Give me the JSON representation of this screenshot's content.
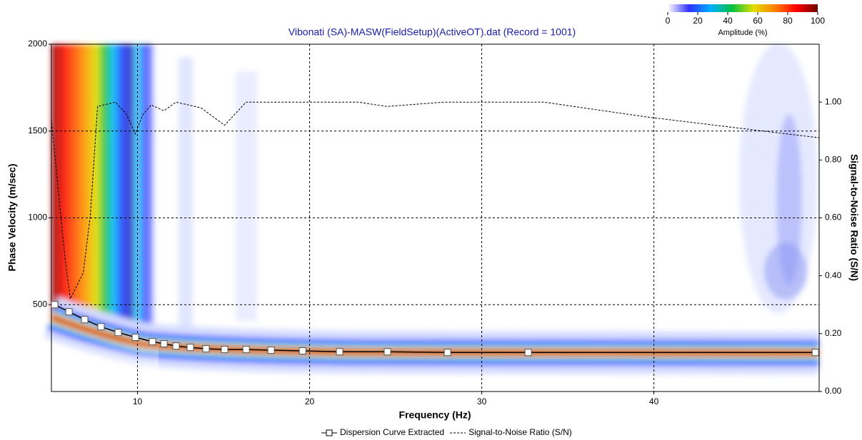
{
  "chart_data": {
    "type": "line",
    "title": "Vibonati (SA)-MASW(FieldSetup)(ActiveOT).dat (Record = 1001)",
    "xlabel": "Frequency (Hz)",
    "ylabel": "Phase Velocity (m/sec)",
    "y2label": "Signal-to-Noise Ratio (S/N)",
    "xlim": [
      5,
      49.6
    ],
    "ylim": [
      0,
      2000
    ],
    "y2lim": [
      0,
      1.2
    ],
    "xticks": [
      10,
      20,
      30,
      40
    ],
    "yticks": [
      500,
      1000,
      1500,
      2000
    ],
    "y2ticks": [
      {
        "value": 0,
        "label": "0.00"
      },
      {
        "value": 0.2,
        "label": "0.20"
      },
      {
        "value": 0.4,
        "label": "0.40"
      },
      {
        "value": 0.6,
        "label": "0.60"
      },
      {
        "value": 0.8,
        "label": "0.80"
      },
      {
        "value": 1.0,
        "label": "1.00"
      }
    ],
    "grid": true,
    "series": [
      {
        "name": "Dispersion Curve Extracted",
        "color": "#000000",
        "marker": "square",
        "x": [
          5.19,
          6.02,
          6.93,
          7.88,
          8.88,
          9.88,
          10.87,
          11.54,
          12.24,
          13.07,
          13.98,
          15.06,
          16.31,
          17.76,
          19.59,
          21.74,
          24.52,
          28.01,
          32.7,
          49.38
        ],
        "values": [
          500,
          459,
          414,
          373,
          340,
          312,
          287,
          275,
          262,
          254,
          246,
          242,
          242,
          238,
          234,
          229,
          229,
          225,
          225,
          225
        ]
      },
      {
        "name": "Signal-to-Noise Ratio (S/N)",
        "color": "#000000",
        "axis": "y2",
        "dashed": true,
        "x": [
          5.0,
          5.39,
          5.81,
          6.1,
          6.85,
          7.26,
          7.68,
          8.71,
          9.34,
          9.88,
          10.29,
          10.79,
          11.54,
          12.24,
          13.69,
          15.06,
          16.31,
          22.82,
          24.48,
          27.8,
          33.61,
          39.42,
          47.72,
          49.6
        ],
        "values": [
          0.94,
          0.7,
          0.45,
          0.32,
          0.41,
          0.61,
          0.985,
          1.0,
          0.96,
          0.89,
          0.955,
          0.99,
          0.97,
          1.0,
          0.98,
          0.92,
          1.0,
          1.0,
          0.985,
          1.0,
          1.0,
          0.95,
          0.89,
          0.877
        ]
      }
    ],
    "colorbar": {
      "label": "Amplitude (%)",
      "lim": [
        0,
        100
      ],
      "ticks": [
        0,
        20,
        40,
        60,
        80,
        100
      ],
      "colors": [
        "#ffffff",
        "#3030ff",
        "#00b0ff",
        "#00c040",
        "#e0e000",
        "#ff8000",
        "#ff0000",
        "#700000"
      ]
    }
  }
}
